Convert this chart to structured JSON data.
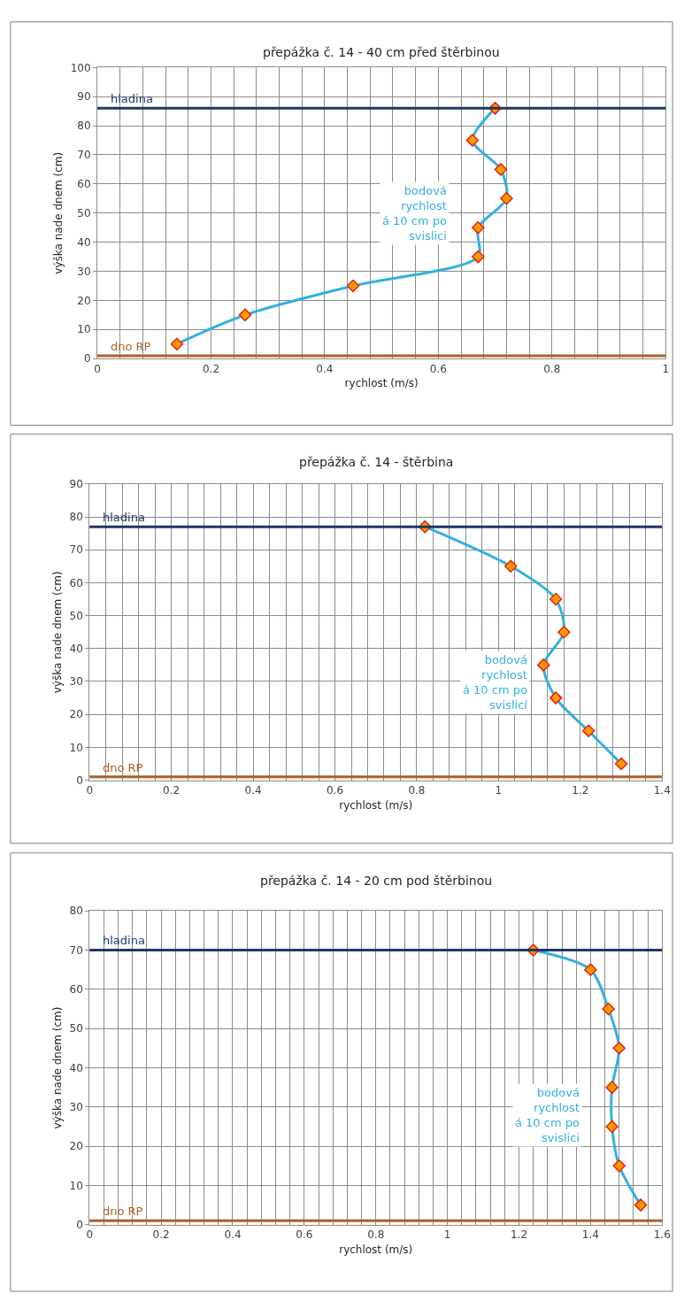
{
  "chart_data": [
    {
      "type": "line",
      "title": "přepážka č. 14 - 40 cm před štěrbinou",
      "xlabel": "rychlost (m/s)",
      "ylabel": "výška nade dnem (cm)",
      "series": [
        {
          "color": "#33b0e0",
          "x": [
            0.14,
            0.26,
            0.45,
            0.67,
            0.67,
            0.72,
            0.71,
            0.66,
            0.7
          ],
          "values": [
            5,
            15,
            25,
            35,
            45,
            55,
            65,
            75,
            86
          ]
        }
      ],
      "xlim": [
        0,
        1
      ],
      "xticks": [
        0,
        {
          "value": 0.04,
          "label": null
        },
        {
          "value": 0.08,
          "label": null
        },
        {
          "value": 0.12,
          "label": null
        },
        {
          "value": 0.16,
          "label": null
        },
        0.2,
        {
          "value": 0.24,
          "label": null
        },
        {
          "value": 0.28,
          "label": null
        },
        {
          "value": 0.32,
          "label": null
        },
        {
          "value": 0.36,
          "label": null
        },
        0.4,
        {
          "value": 0.44,
          "label": null
        },
        {
          "value": 0.48,
          "label": null
        },
        {
          "value": 0.52,
          "label": null
        },
        {
          "value": 0.56,
          "label": null
        },
        0.6,
        {
          "value": 0.64,
          "label": null
        },
        {
          "value": 0.68,
          "label": null
        },
        {
          "value": 0.72,
          "label": null
        },
        {
          "value": 0.76,
          "label": null
        },
        0.8,
        {
          "value": 0.84,
          "label": null
        },
        {
          "value": 0.88,
          "label": null
        },
        {
          "value": 0.92,
          "label": null
        },
        {
          "value": 0.96,
          "label": null
        },
        1
      ],
      "ylim": [
        0,
        100
      ],
      "yticks": [
        0,
        10,
        20,
        30,
        40,
        50,
        60,
        70,
        80,
        90,
        100
      ],
      "ref_lines": [
        {
          "axis": "y",
          "value": 86,
          "label": "hladina",
          "color": "#1f3864"
        },
        {
          "axis": "y",
          "value": 1,
          "label": "dno RP",
          "color": "#a9612a"
        }
      ],
      "annotations": [
        "bodová\nrychlost\ná 10 cm po\nsvislici"
      ],
      "grid": true,
      "marker": "diamond",
      "line_style": "solid"
    },
    {
      "type": "line",
      "title": "přepážka č. 14 - štěrbina",
      "xlabel": "rychlost (m/s)",
      "ylabel": "výška nade dnem (cm)",
      "series": [
        {
          "color": "#33b0e0",
          "x": [
            1.3,
            1.22,
            1.14,
            1.11,
            1.16,
            1.14,
            1.03,
            0.82
          ],
          "values": [
            5,
            15,
            25,
            35,
            45,
            55,
            65,
            77
          ]
        }
      ],
      "xlim": [
        0,
        1.4
      ],
      "xticks": [
        0,
        {
          "value": 0.04,
          "label": null
        },
        {
          "value": 0.08,
          "label": null
        },
        {
          "value": 0.12,
          "label": null
        },
        {
          "value": 0.16,
          "label": null
        },
        0.2,
        {
          "value": 0.24,
          "label": null
        },
        {
          "value": 0.28,
          "label": null
        },
        {
          "value": 0.32,
          "label": null
        },
        {
          "value": 0.36,
          "label": null
        },
        0.4,
        {
          "value": 0.44,
          "label": null
        },
        {
          "value": 0.48,
          "label": null
        },
        {
          "value": 0.52,
          "label": null
        },
        {
          "value": 0.56,
          "label": null
        },
        0.6,
        {
          "value": 0.64,
          "label": null
        },
        {
          "value": 0.68,
          "label": null
        },
        {
          "value": 0.72,
          "label": null
        },
        {
          "value": 0.76,
          "label": null
        },
        0.8,
        {
          "value": 0.84,
          "label": null
        },
        {
          "value": 0.88,
          "label": null
        },
        {
          "value": 0.92,
          "label": null
        },
        {
          "value": 0.96,
          "label": null
        },
        1,
        {
          "value": 1.04,
          "label": null
        },
        {
          "value": 1.08,
          "label": null
        },
        {
          "value": 1.12,
          "label": null
        },
        {
          "value": 1.16,
          "label": null
        },
        1.2,
        {
          "value": 1.24,
          "label": null
        },
        {
          "value": 1.28,
          "label": null
        },
        {
          "value": 1.32,
          "label": null
        },
        {
          "value": 1.36,
          "label": null
        },
        1.4
      ],
      "ylim": [
        0,
        90
      ],
      "yticks": [
        0,
        10,
        20,
        30,
        40,
        50,
        60,
        70,
        80,
        90
      ],
      "ref_lines": [
        {
          "axis": "y",
          "value": 77,
          "label": "hladina",
          "color": "#1f3864"
        },
        {
          "axis": "y",
          "value": 1,
          "label": "dno RP",
          "color": "#a9612a"
        }
      ],
      "annotations": [
        "bodová\nrychlost\ná 10 cm po\nsvislicí"
      ],
      "grid": true,
      "marker": "diamond",
      "line_style": "solid"
    },
    {
      "type": "line",
      "title": "přepážka č. 14 - 20 cm pod štěrbinou",
      "xlabel": "rychlost (m/s)",
      "ylabel": "výška nade dnem (cm)",
      "series": [
        {
          "color": "#33b0e0",
          "x": [
            1.54,
            1.48,
            1.46,
            1.46,
            1.48,
            1.45,
            1.4,
            1.24
          ],
          "values": [
            5,
            15,
            25,
            35,
            45,
            55,
            65,
            70
          ]
        }
      ],
      "xlim": [
        0,
        1.6
      ],
      "xticks": [
        0,
        {
          "value": 0.04,
          "label": null
        },
        {
          "value": 0.08,
          "label": null
        },
        {
          "value": 0.12,
          "label": null
        },
        {
          "value": 0.16,
          "label": null
        },
        0.2,
        {
          "value": 0.24,
          "label": null
        },
        {
          "value": 0.28,
          "label": null
        },
        {
          "value": 0.32,
          "label": null
        },
        {
          "value": 0.36,
          "label": null
        },
        0.4,
        {
          "value": 0.44,
          "label": null
        },
        {
          "value": 0.48,
          "label": null
        },
        {
          "value": 0.52,
          "label": null
        },
        {
          "value": 0.56,
          "label": null
        },
        0.6,
        {
          "value": 0.64,
          "label": null
        },
        {
          "value": 0.68,
          "label": null
        },
        {
          "value": 0.72,
          "label": null
        },
        {
          "value": 0.76,
          "label": null
        },
        0.8,
        {
          "value": 0.84,
          "label": null
        },
        {
          "value": 0.88,
          "label": null
        },
        {
          "value": 0.92,
          "label": null
        },
        {
          "value": 0.96,
          "label": null
        },
        1,
        {
          "value": 1.04,
          "label": null
        },
        {
          "value": 1.08,
          "label": null
        },
        {
          "value": 1.12,
          "label": null
        },
        {
          "value": 1.16,
          "label": null
        },
        1.2,
        {
          "value": 1.24,
          "label": null
        },
        {
          "value": 1.28,
          "label": null
        },
        {
          "value": 1.32,
          "label": null
        },
        {
          "value": 1.36,
          "label": null
        },
        1.4,
        {
          "value": 1.44,
          "label": null
        },
        {
          "value": 1.48,
          "label": null
        },
        {
          "value": 1.52,
          "label": null
        },
        {
          "value": 1.56,
          "label": null
        },
        1.6
      ],
      "ylim": [
        0,
        80
      ],
      "yticks": [
        0,
        10,
        20,
        30,
        40,
        50,
        60,
        70,
        80
      ],
      "ref_lines": [
        {
          "axis": "y",
          "value": 70,
          "label": "hladina",
          "color": "#1f3864"
        },
        {
          "axis": "y",
          "value": 1,
          "label": "dno RP",
          "color": "#a9612a"
        }
      ],
      "annotations": [
        "bodová\nrychlost\ná 10 cm po\nsvislici"
      ],
      "grid": true,
      "marker": "diamond",
      "line_style": "solid"
    }
  ]
}
